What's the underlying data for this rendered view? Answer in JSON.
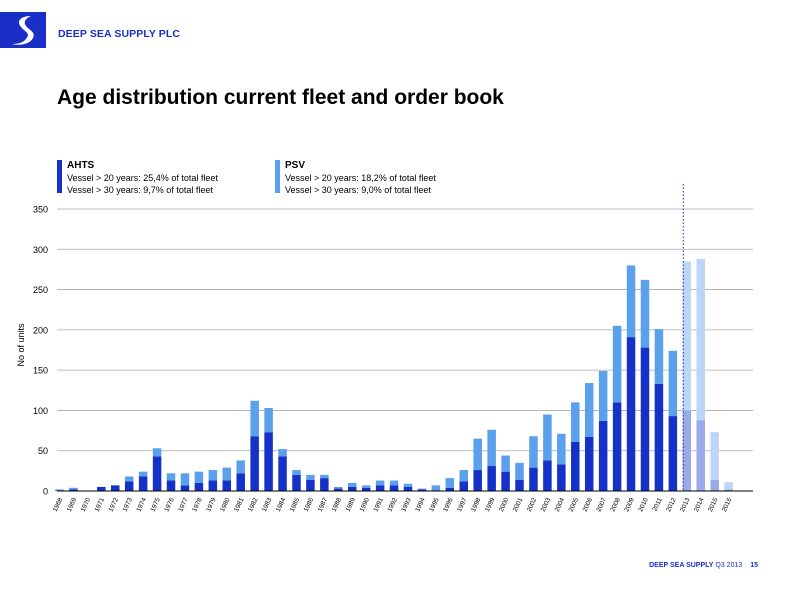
{
  "header": {
    "company": "DEEP SEA SUPPLY PLC"
  },
  "slide": {
    "title": "Age distribution current fleet and order book"
  },
  "legend": {
    "ahts": {
      "title": "AHTS",
      "line1": "Vessel > 20 years: 25,4% of total fleet",
      "line2": "Vessel > 30 years: 9,7% of total fleet",
      "color": "#1631c8"
    },
    "psv": {
      "title": "PSV",
      "line1": "Vessel > 20 years: 18,2% of total fleet",
      "line2": "Vessel > 30 years: 9,0% of total fleet",
      "color": "#5aa0eb"
    }
  },
  "footer": {
    "brand": "DEEP SEA SUPPLY",
    "period": "Q3 2013",
    "page": "15"
  },
  "colors": {
    "ahts": "#1631c8",
    "psv": "#5aa0eb",
    "ahts_orderbook": "#9aaae8",
    "psv_orderbook": "#bcd6f7",
    "grid": "#a9a9a9",
    "axis": "#000000",
    "brand": "#1a2fc8"
  },
  "chart_data": {
    "type": "bar",
    "stacked": true,
    "ylabel": "No of units",
    "ylim": [
      0,
      350
    ],
    "yticks": [
      0,
      50,
      100,
      150,
      200,
      250,
      300,
      350
    ],
    "grid": true,
    "separator_after": "2012",
    "categories": [
      "1968",
      "1969",
      "1970",
      "1971",
      "1972",
      "1973",
      "1974",
      "1975",
      "1976",
      "1977",
      "1978",
      "1979",
      "1980",
      "1981",
      "1982",
      "1983",
      "1984",
      "1985",
      "1986",
      "1987",
      "1988",
      "1989",
      "1990",
      "1991",
      "1992",
      "1993",
      "1994",
      "1995",
      "1996",
      "1997",
      "1998",
      "1999",
      "2000",
      "2001",
      "2002",
      "2003",
      "2004",
      "2005",
      "2006",
      "2007",
      "2008",
      "2009",
      "2010",
      "2011",
      "2012",
      "2013",
      "2014",
      "2015",
      "2016"
    ],
    "series": [
      {
        "name": "AHTS",
        "values": [
          1,
          2,
          0,
          5,
          7,
          12,
          18,
          43,
          13,
          7,
          10,
          13,
          13,
          22,
          68,
          73,
          43,
          20,
          14,
          16,
          3,
          5,
          4,
          7,
          7,
          5,
          2,
          1,
          4,
          12,
          26,
          31,
          24,
          14,
          29,
          38,
          33,
          61,
          67,
          87,
          110,
          191,
          178,
          133,
          93,
          100,
          88,
          14,
          2
        ]
      },
      {
        "name": "PSV",
        "values": [
          1,
          2,
          0,
          0,
          0,
          6,
          6,
          10,
          9,
          15,
          14,
          13,
          16,
          16,
          44,
          30,
          9,
          6,
          6,
          4,
          2,
          5,
          3,
          6,
          6,
          4,
          1,
          6,
          12,
          14,
          39,
          45,
          20,
          21,
          39,
          57,
          38,
          49,
          67,
          62,
          95,
          89,
          84,
          68,
          81,
          185,
          200,
          59,
          9
        ]
      }
    ]
  }
}
